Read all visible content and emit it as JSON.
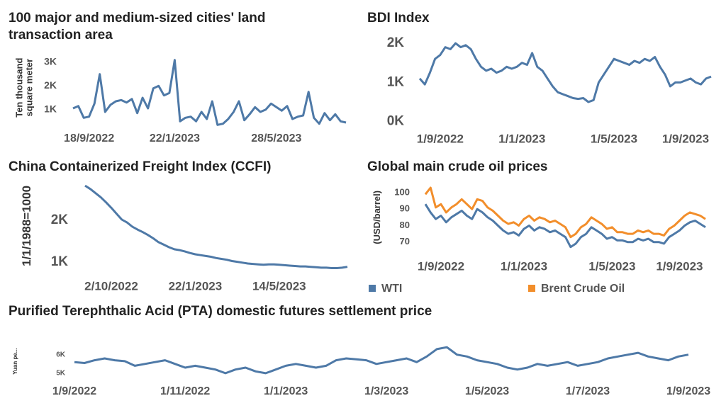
{
  "chart_data": [
    {
      "type": "line",
      "title": "100 major and medium-sized cities' land transaction area",
      "ylabel": "Ten thousand square meter",
      "categories": [
        null,
        null,
        null,
        "18/9/2022",
        null,
        null,
        null,
        null,
        null,
        null,
        null,
        null,
        null,
        null,
        null,
        null,
        null,
        null,
        null,
        "22/1/2023",
        null,
        null,
        null,
        null,
        null,
        null,
        null,
        null,
        null,
        null,
        null,
        null,
        null,
        null,
        null,
        null,
        null,
        null,
        "28/5/2023",
        null,
        null,
        null,
        null,
        null,
        null,
        null,
        null,
        null,
        null,
        null,
        null,
        null
      ],
      "values": [
        1050,
        1150,
        650,
        700,
        1250,
        2500,
        900,
        1200,
        1350,
        1400,
        1300,
        1450,
        850,
        1500,
        1050,
        1900,
        2000,
        1600,
        1700,
        3100,
        500,
        650,
        700,
        500,
        900,
        600,
        1350,
        350,
        400,
        600,
        900,
        1350,
        550,
        800,
        1100,
        900,
        1000,
        1250,
        1100,
        950,
        1150,
        600,
        700,
        750,
        1750,
        650,
        400,
        850,
        550,
        800,
        500,
        450
      ],
      "color": "#4e79a7",
      "ylim": [
        300,
        3300
      ],
      "yticks": [
        {
          "value": 1000,
          "label": "1K"
        },
        {
          "value": 2000,
          "label": "2K"
        },
        {
          "value": 3000,
          "label": "3K"
        }
      ]
    },
    {
      "type": "line",
      "title": "BDI Index",
      "categories": [
        null,
        null,
        null,
        null,
        "1/9/2022",
        null,
        null,
        null,
        null,
        null,
        null,
        null,
        null,
        null,
        null,
        null,
        null,
        null,
        null,
        null,
        "1/1/2023",
        null,
        null,
        null,
        null,
        null,
        null,
        null,
        null,
        null,
        null,
        null,
        null,
        null,
        null,
        null,
        null,
        null,
        "1/5/2023",
        null,
        null,
        null,
        null,
        null,
        null,
        null,
        null,
        null,
        null,
        null,
        null,
        null,
        "1/9/2023",
        null,
        null,
        null,
        null,
        null
      ],
      "values": [
        1100,
        950,
        1250,
        1600,
        1700,
        1900,
        1850,
        2000,
        1900,
        1950,
        1850,
        1600,
        1400,
        1300,
        1350,
        1250,
        1300,
        1400,
        1350,
        1400,
        1500,
        1450,
        1750,
        1400,
        1300,
        1100,
        900,
        750,
        700,
        650,
        600,
        580,
        600,
        500,
        550,
        1000,
        1200,
        1400,
        1600,
        1550,
        1500,
        1450,
        1550,
        1500,
        1600,
        1550,
        1650,
        1400,
        1200,
        900,
        1000,
        1000,
        1050,
        1100,
        1000,
        950,
        1100,
        1150
      ],
      "color": "#4e79a7",
      "ylim": [
        -150,
        2200
      ],
      "yticks": [
        {
          "value": 0,
          "label": "0K"
        },
        {
          "value": 1000,
          "label": "1K"
        },
        {
          "value": 2000,
          "label": "2K"
        }
      ]
    },
    {
      "type": "line",
      "title": "China Containerized Freight Index (CCFI)",
      "ylabel": "1/1/1988=1000",
      "categories": [
        null,
        null,
        null,
        null,
        null,
        "2/10/2022",
        null,
        null,
        null,
        null,
        null,
        null,
        null,
        null,
        null,
        null,
        null,
        null,
        null,
        null,
        null,
        "22/1/2023",
        null,
        null,
        null,
        null,
        null,
        null,
        null,
        null,
        null,
        null,
        null,
        null,
        null,
        null,
        null,
        "14/5/2023",
        null,
        null,
        null,
        null,
        null,
        null,
        null,
        null,
        null,
        null,
        null,
        null,
        null
      ],
      "values": [
        2830,
        2750,
        2650,
        2550,
        2430,
        2300,
        2160,
        2020,
        1950,
        1850,
        1780,
        1720,
        1650,
        1570,
        1480,
        1420,
        1360,
        1310,
        1290,
        1260,
        1220,
        1190,
        1170,
        1150,
        1130,
        1100,
        1080,
        1060,
        1030,
        1010,
        990,
        970,
        960,
        950,
        940,
        950,
        950,
        940,
        930,
        920,
        910,
        900,
        900,
        890,
        880,
        870,
        870,
        860,
        860,
        870,
        890
      ],
      "color": "#4e79a7",
      "ylim": [
        750,
        2950
      ],
      "yticks": [
        {
          "value": 1000,
          "label": "1K"
        },
        {
          "value": 2000,
          "label": "2K"
        }
      ]
    },
    {
      "type": "line",
      "title": "Global main crude oil prices",
      "ylabel": "(USD/barrel)",
      "categories": [
        null,
        null,
        null,
        "1/9/2022",
        null,
        null,
        null,
        null,
        null,
        null,
        null,
        null,
        null,
        null,
        null,
        null,
        null,
        null,
        null,
        "1/1/2023",
        null,
        null,
        null,
        null,
        null,
        null,
        null,
        null,
        null,
        null,
        null,
        null,
        null,
        null,
        null,
        null,
        "1/5/2023",
        null,
        null,
        null,
        null,
        null,
        null,
        null,
        null,
        null,
        null,
        null,
        null,
        "1/9/2023",
        null,
        null,
        null,
        null,
        null
      ],
      "series": [
        {
          "name": "WTI",
          "color": "#4e79a7",
          "values": [
            93,
            88,
            84,
            86,
            82,
            85,
            87,
            89,
            86,
            84,
            90,
            88,
            85,
            83,
            80,
            77,
            75,
            76,
            74,
            78,
            80,
            77,
            79,
            78,
            76,
            77,
            75,
            73,
            67,
            69,
            73,
            75,
            79,
            77,
            75,
            72,
            73,
            71,
            71,
            70,
            70,
            72,
            71,
            72,
            70,
            70,
            69,
            73,
            75,
            77,
            80,
            82,
            83,
            81,
            79
          ]
        },
        {
          "name": "Brent Crude Oil",
          "color": "#f28e2b",
          "values": [
            99,
            103,
            91,
            93,
            88,
            91,
            93,
            96,
            93,
            90,
            96,
            95,
            91,
            89,
            86,
            83,
            81,
            82,
            80,
            84,
            86,
            83,
            85,
            84,
            82,
            83,
            81,
            79,
            73,
            75,
            79,
            81,
            85,
            83,
            81,
            78,
            79,
            76,
            76,
            75,
            75,
            77,
            76,
            77,
            75,
            75,
            74,
            78,
            80,
            83,
            86,
            88,
            87,
            86,
            84
          ]
        }
      ],
      "ylim": [
        63,
        106
      ],
      "yticks": [
        70,
        80,
        90,
        100
      ],
      "legend": "bottom"
    },
    {
      "type": "line",
      "title": "Purified Terephthalic Acid (PTA) domestic futures settlement price",
      "ylabel": "Yuan pe...",
      "categories": [
        "1/9/2022",
        null,
        null,
        null,
        null,
        null,
        null,
        null,
        null,
        null,
        null,
        "1/11/2022",
        null,
        null,
        null,
        null,
        null,
        null,
        null,
        null,
        null,
        "1/1/2023",
        null,
        null,
        null,
        null,
        null,
        null,
        null,
        null,
        null,
        "1/3/2023",
        null,
        null,
        null,
        null,
        null,
        null,
        null,
        null,
        null,
        "1/5/2023",
        null,
        null,
        null,
        null,
        null,
        null,
        null,
        null,
        null,
        "1/7/2023",
        null,
        null,
        null,
        null,
        null,
        null,
        null,
        null,
        null,
        "1/9/2023"
      ],
      "values": [
        5600,
        5550,
        5700,
        5800,
        5700,
        5650,
        5400,
        5500,
        5600,
        5700,
        5500,
        5300,
        5400,
        5300,
        5200,
        5000,
        5200,
        5300,
        5100,
        5000,
        5200,
        5400,
        5500,
        5400,
        5300,
        5400,
        5700,
        5800,
        5750,
        5700,
        5500,
        5600,
        5700,
        5800,
        5600,
        5900,
        6300,
        6400,
        6000,
        5900,
        5700,
        5600,
        5500,
        5300,
        5200,
        5300,
        5500,
        5400,
        5500,
        5600,
        5400,
        5500,
        5600,
        5800,
        5900,
        6000,
        6100,
        5900,
        5800,
        5700,
        5900,
        6000
      ],
      "color": "#4e79a7",
      "ylim": [
        4500,
        6600
      ],
      "yticks": [
        {
          "value": 5000,
          "label": "5K"
        },
        {
          "value": 6000,
          "label": "6K"
        }
      ]
    }
  ]
}
